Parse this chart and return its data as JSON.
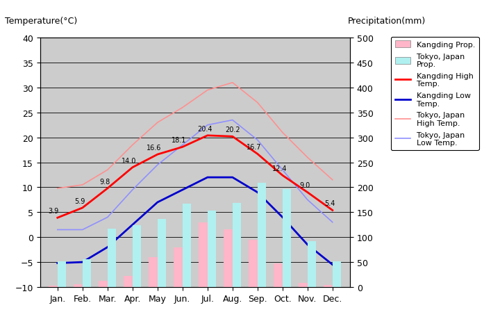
{
  "months": [
    "Jan.",
    "Feb.",
    "Mar.",
    "Apr.",
    "May",
    "Jun.",
    "Jul.",
    "Aug.",
    "Sep.",
    "Oct.",
    "Nov.",
    "Dec."
  ],
  "kangding_high": [
    3.9,
    5.9,
    9.8,
    14.0,
    16.6,
    18.1,
    20.4,
    20.2,
    16.7,
    12.4,
    9.0,
    5.4
  ],
  "kangding_low": [
    -5.2,
    -5.0,
    -2.0,
    2.5,
    7.0,
    9.5,
    12.0,
    12.0,
    9.0,
    4.0,
    -1.5,
    -5.5
  ],
  "tokyo_high": [
    9.8,
    10.5,
    13.5,
    18.5,
    23.0,
    26.0,
    29.5,
    31.0,
    27.0,
    21.0,
    16.0,
    11.5
  ],
  "tokyo_low": [
    1.5,
    1.5,
    4.0,
    9.5,
    14.5,
    18.5,
    22.5,
    23.5,
    19.5,
    13.5,
    7.5,
    3.0
  ],
  "kangding_precip": [
    3.0,
    5.0,
    12.0,
    22.0,
    60.0,
    80.0,
    130.0,
    115.0,
    95.0,
    48.0,
    8.0,
    3.5
  ],
  "tokyo_precip": [
    52.0,
    56.0,
    117.0,
    124.0,
    137.0,
    167.0,
    153.0,
    168.0,
    209.0,
    197.0,
    92.0,
    51.0
  ],
  "temp_ylim": [
    -10,
    40
  ],
  "precip_ylim": [
    0,
    500
  ],
  "title_left": "Temperature(°C)",
  "title_right": "Precipitation(mm)",
  "bg_color": "#d0d0d0",
  "plot_bg": "#cccccc",
  "kangding_precip_color": "#ffb6c8",
  "tokyo_precip_color": "#b0f0f0",
  "kangding_high_color": "#ff0000",
  "kangding_low_color": "#0000cc",
  "tokyo_high_color": "#ff9090",
  "tokyo_low_color": "#9090ff",
  "legend_labels": [
    "Kangding Prop.",
    "Tokyo, Japan\nProp.",
    "Kangding High\nTemp.",
    "Kangding Low\nTemp.",
    "Tokyo, Japan\nHigh Temp.",
    "Tokyo, Japan\nLow Temp."
  ]
}
